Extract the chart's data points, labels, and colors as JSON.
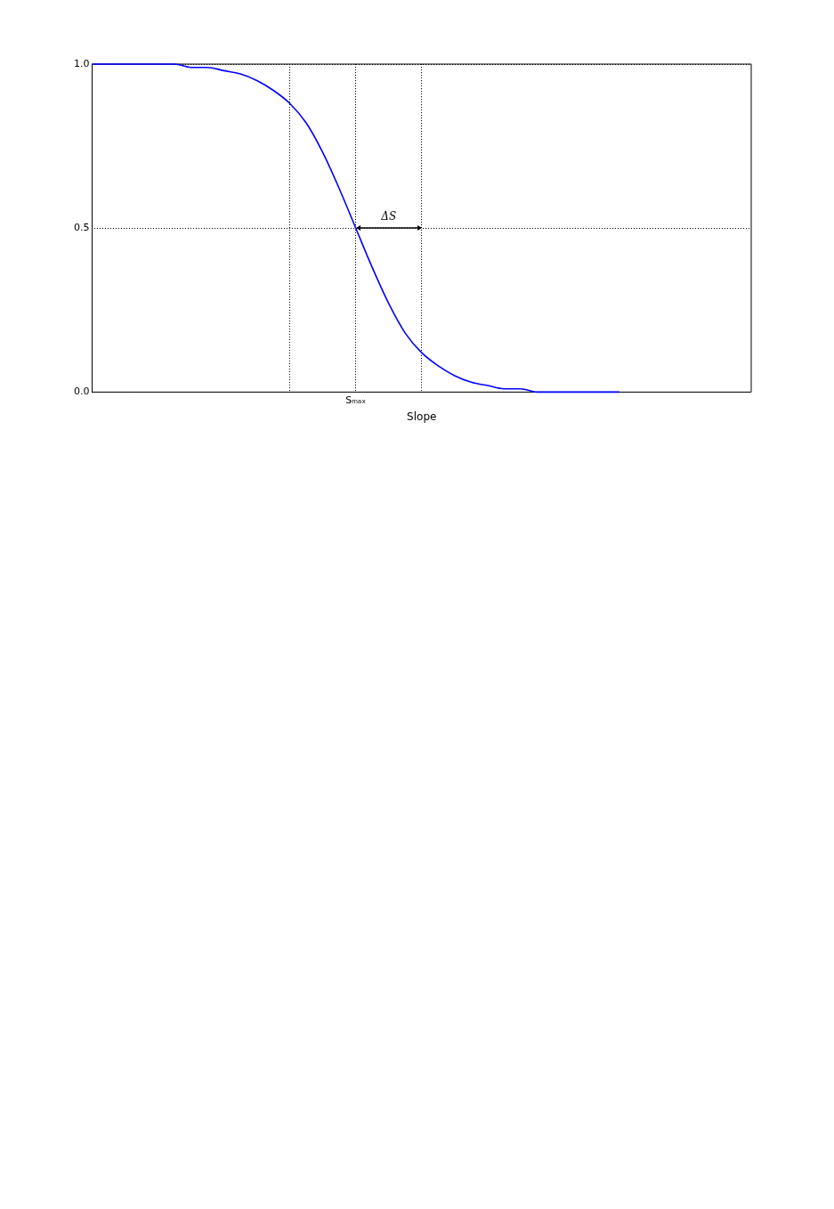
{
  "chart_data": {
    "type": "line",
    "xlabel": "Slope",
    "categories": [
      null,
      null,
      null,
      null,
      null,
      null,
      null,
      null,
      null,
      null,
      null,
      null,
      null,
      null,
      null,
      null,
      "Sₘₐₓ",
      null,
      null,
      null,
      null,
      null,
      null,
      null,
      null,
      null,
      null,
      null,
      null,
      null,
      null,
      null,
      null,
      null,
      null,
      null,
      null,
      null,
      null,
      null,
      null
    ],
    "series": [
      {
        "color": "#0000ff",
        "values": [
          1.0,
          1.0,
          1.0,
          1.0,
          1.0,
          1.0,
          0.99,
          0.99,
          0.98,
          0.97,
          0.95,
          0.92,
          0.88,
          0.82,
          0.73,
          0.62,
          0.5,
          0.38,
          0.27,
          0.18,
          0.12,
          0.08,
          0.05,
          0.03,
          0.02,
          0.01,
          0.01,
          0.0,
          0.0,
          0.0,
          0.0,
          0.0,
          0.0,
          null,
          null,
          null,
          null,
          null,
          null,
          null,
          null
        ]
      }
    ],
    "ylim": [
      0,
      1
    ],
    "yticks": [
      {
        "value": 0,
        "label": "0.0"
      },
      {
        "value": 0.5,
        "label": "0.5"
      },
      {
        "value": 1,
        "label": "1.0"
      }
    ],
    "grid": true,
    "line_style": "solid",
    "marker": "none",
    "legend": false,
    "annotations": [
      {
        "text": "ΔS",
        "x": "Sₘₐₓ",
        "y": 0.5
      }
    ]
  }
}
